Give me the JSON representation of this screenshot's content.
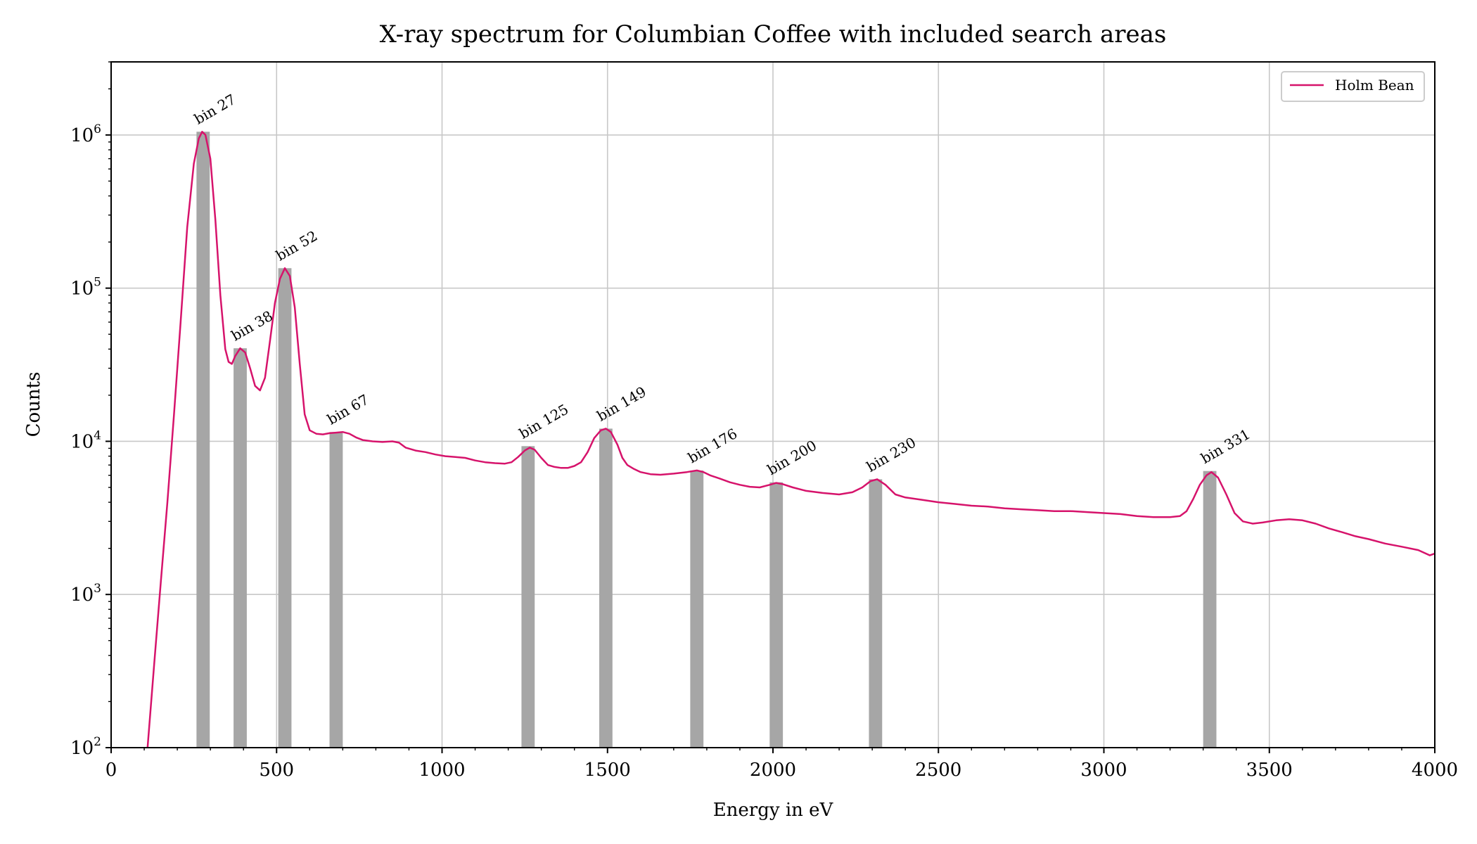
{
  "chart_data": {
    "type": "line",
    "title": "X-ray spectrum for Columbian Coffee with included search areas",
    "xlabel": "Energy in eV",
    "ylabel": "Counts",
    "xlim": [
      0,
      4000
    ],
    "ylim": [
      100,
      3000000
    ],
    "yscale": "log",
    "grid": true,
    "legend_position": "top-right",
    "x_ticks": [
      0,
      500,
      1000,
      1500,
      2000,
      2500,
      3000,
      3500,
      4000
    ],
    "y_ticks": [
      {
        "value": 100,
        "base": "10",
        "exp": "2"
      },
      {
        "value": 1000,
        "base": "10",
        "exp": "3"
      },
      {
        "value": 10000,
        "base": "10",
        "exp": "4"
      },
      {
        "value": 100000,
        "base": "10",
        "exp": "5"
      },
      {
        "value": 1000000,
        "base": "10",
        "exp": "6"
      }
    ],
    "series": [
      {
        "name": "Holm Bean",
        "color": "#d6136b",
        "points": [
          [
            110,
            100
          ],
          [
            130,
            350
          ],
          [
            150,
            1200
          ],
          [
            170,
            4000
          ],
          [
            190,
            15000
          ],
          [
            210,
            60000
          ],
          [
            230,
            250000
          ],
          [
            250,
            650000
          ],
          [
            265,
            950000
          ],
          [
            275,
            1050000
          ],
          [
            285,
            1000000
          ],
          [
            300,
            700000
          ],
          [
            315,
            280000
          ],
          [
            330,
            90000
          ],
          [
            345,
            40000
          ],
          [
            355,
            33000
          ],
          [
            365,
            32000
          ],
          [
            375,
            36000
          ],
          [
            390,
            40500
          ],
          [
            405,
            38000
          ],
          [
            420,
            30000
          ],
          [
            435,
            23000
          ],
          [
            450,
            21500
          ],
          [
            465,
            26000
          ],
          [
            480,
            45000
          ],
          [
            495,
            80000
          ],
          [
            510,
            115000
          ],
          [
            525,
            135000
          ],
          [
            540,
            120000
          ],
          [
            555,
            75000
          ],
          [
            570,
            32000
          ],
          [
            585,
            15000
          ],
          [
            600,
            11800
          ],
          [
            620,
            11200
          ],
          [
            640,
            11100
          ],
          [
            660,
            11300
          ],
          [
            680,
            11400
          ],
          [
            700,
            11500
          ],
          [
            720,
            11200
          ],
          [
            740,
            10600
          ],
          [
            760,
            10200
          ],
          [
            790,
            10000
          ],
          [
            820,
            9900
          ],
          [
            850,
            10000
          ],
          [
            870,
            9800
          ],
          [
            890,
            9100
          ],
          [
            920,
            8700
          ],
          [
            950,
            8500
          ],
          [
            980,
            8200
          ],
          [
            1010,
            8000
          ],
          [
            1040,
            7900
          ],
          [
            1070,
            7800
          ],
          [
            1100,
            7500
          ],
          [
            1130,
            7300
          ],
          [
            1160,
            7200
          ],
          [
            1190,
            7150
          ],
          [
            1210,
            7300
          ],
          [
            1230,
            7900
          ],
          [
            1250,
            8700
          ],
          [
            1265,
            9100
          ],
          [
            1280,
            8800
          ],
          [
            1300,
            7800
          ],
          [
            1320,
            7000
          ],
          [
            1340,
            6800
          ],
          [
            1360,
            6700
          ],
          [
            1380,
            6700
          ],
          [
            1400,
            6900
          ],
          [
            1420,
            7300
          ],
          [
            1440,
            8500
          ],
          [
            1460,
            10500
          ],
          [
            1480,
            11800
          ],
          [
            1495,
            12100
          ],
          [
            1510,
            11500
          ],
          [
            1530,
            9500
          ],
          [
            1545,
            7800
          ],
          [
            1560,
            7000
          ],
          [
            1580,
            6600
          ],
          [
            1600,
            6300
          ],
          [
            1630,
            6100
          ],
          [
            1660,
            6050
          ],
          [
            1700,
            6150
          ],
          [
            1740,
            6300
          ],
          [
            1770,
            6450
          ],
          [
            1790,
            6300
          ],
          [
            1810,
            6000
          ],
          [
            1840,
            5700
          ],
          [
            1870,
            5400
          ],
          [
            1900,
            5200
          ],
          [
            1930,
            5050
          ],
          [
            1960,
            5000
          ],
          [
            1990,
            5200
          ],
          [
            2010,
            5350
          ],
          [
            2030,
            5250
          ],
          [
            2060,
            5000
          ],
          [
            2100,
            4750
          ],
          [
            2150,
            4600
          ],
          [
            2200,
            4500
          ],
          [
            2240,
            4650
          ],
          [
            2270,
            5000
          ],
          [
            2295,
            5500
          ],
          [
            2315,
            5650
          ],
          [
            2340,
            5200
          ],
          [
            2370,
            4500
          ],
          [
            2400,
            4300
          ],
          [
            2450,
            4150
          ],
          [
            2500,
            4000
          ],
          [
            2550,
            3900
          ],
          [
            2600,
            3800
          ],
          [
            2650,
            3750
          ],
          [
            2700,
            3650
          ],
          [
            2750,
            3600
          ],
          [
            2800,
            3550
          ],
          [
            2850,
            3500
          ],
          [
            2900,
            3500
          ],
          [
            2950,
            3450
          ],
          [
            3000,
            3400
          ],
          [
            3050,
            3350
          ],
          [
            3100,
            3250
          ],
          [
            3150,
            3200
          ],
          [
            3200,
            3200
          ],
          [
            3230,
            3250
          ],
          [
            3250,
            3500
          ],
          [
            3270,
            4200
          ],
          [
            3290,
            5200
          ],
          [
            3310,
            6000
          ],
          [
            3325,
            6300
          ],
          [
            3345,
            5800
          ],
          [
            3370,
            4500
          ],
          [
            3395,
            3400
          ],
          [
            3420,
            3000
          ],
          [
            3450,
            2900
          ],
          [
            3480,
            2950
          ],
          [
            3520,
            3050
          ],
          [
            3560,
            3100
          ],
          [
            3600,
            3050
          ],
          [
            3640,
            2900
          ],
          [
            3680,
            2700
          ],
          [
            3720,
            2550
          ],
          [
            3760,
            2400
          ],
          [
            3800,
            2300
          ],
          [
            3850,
            2150
          ],
          [
            3900,
            2050
          ],
          [
            3950,
            1950
          ],
          [
            3985,
            1800
          ],
          [
            4000,
            1850
          ]
        ]
      }
    ],
    "search_areas": [
      {
        "label": "bin 27",
        "center": 278,
        "height": 1050000
      },
      {
        "label": "bin 38",
        "center": 390,
        "height": 40500
      },
      {
        "label": "bin 52",
        "center": 525,
        "height": 135000
      },
      {
        "label": "bin 67",
        "center": 680,
        "height": 11500
      },
      {
        "label": "bin 125",
        "center": 1260,
        "height": 9300
      },
      {
        "label": "bin 149",
        "center": 1495,
        "height": 12100
      },
      {
        "label": "bin 176",
        "center": 1770,
        "height": 6450
      },
      {
        "label": "bin 200",
        "center": 2010,
        "height": 5400
      },
      {
        "label": "bin 230",
        "center": 2310,
        "height": 5650
      },
      {
        "label": "bin 331",
        "center": 3320,
        "height": 6400
      }
    ],
    "search_area_color": "#a6a6a6"
  }
}
